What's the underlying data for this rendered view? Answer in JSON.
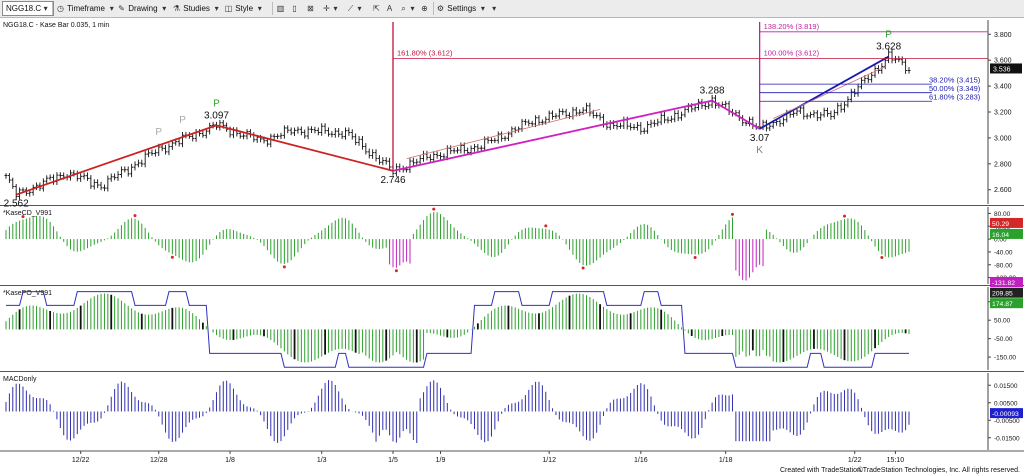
{
  "toolbar": {
    "symbol": "NGG18.C",
    "items": [
      {
        "id": "timeframe",
        "label": "Timeframe",
        "icon": "clock-icon"
      },
      {
        "id": "drawing",
        "label": "Drawing",
        "icon": "pencil-icon"
      },
      {
        "id": "studies",
        "label": "Studies",
        "icon": "flask-icon"
      },
      {
        "id": "style",
        "label": "Style",
        "icon": "style-icon"
      },
      {
        "id": "settings",
        "label": "Settings",
        "icon": "gear-icon"
      }
    ]
  },
  "chart_data": {
    "type": "candlestick",
    "symbol_label": "NGG18.C - Kase Bar 0.035, 1 min",
    "x_labels": [
      "12/22",
      "12/28",
      "1/8",
      "1/3",
      "1/5",
      "1/9",
      "1/12",
      "1/16",
      "1/18",
      "1/22",
      "15:10"
    ],
    "price_axis": {
      "ticks": [
        "3.800",
        "3.600",
        "3.400",
        "3.200",
        "3.000",
        "2.800",
        "2.600"
      ],
      "ylim": [
        2.49,
        3.91
      ],
      "last_price": "3.536"
    },
    "swing_points": [
      {
        "x_index": 3,
        "label": "2.562",
        "price": 2.562
      },
      {
        "x_index": 62,
        "label": "3.097",
        "price": 3.097
      },
      {
        "x_index": 114,
        "label": "2.746",
        "price": 2.746
      },
      {
        "x_index": 208,
        "label": "3.288",
        "price": 3.288
      },
      {
        "x_index": 222,
        "label": "3.07",
        "price": 3.07
      },
      {
        "x_index": 260,
        "label": "3.628",
        "price": 3.628
      }
    ],
    "pattern_markers": [
      {
        "x_index": 62,
        "label": "P",
        "color": "#2ca02c",
        "placement": "above"
      },
      {
        "x_index": 45,
        "label": "P",
        "color": "#a9a9a9",
        "placement": "above"
      },
      {
        "x_index": 52,
        "label": "P",
        "color": "#a9a9a9",
        "placement": "above"
      },
      {
        "x_index": 260,
        "label": "P",
        "color": "#2ca02c",
        "placement": "above"
      },
      {
        "x_index": 222,
        "label": "K",
        "color": "#808080",
        "placement": "below"
      }
    ],
    "projection_lines": [
      {
        "label": "161.80% (3.612)",
        "price": 3.612,
        "color": "#c0143c"
      },
      {
        "label": "138.20% (3.819)",
        "price": 3.819,
        "color": "#c020a0"
      },
      {
        "label": "100.00% (3.612)",
        "price": 3.612,
        "color": "#c020a0"
      }
    ],
    "retracement_lines": [
      {
        "label": "38.20% (3.415)",
        "price": 3.415
      },
      {
        "label": "50.00% (3.349)",
        "price": 3.349
      },
      {
        "label": "61.80% (3.283)",
        "price": 3.283
      }
    ],
    "price_waypoints": [
      [
        0,
        2.7
      ],
      [
        3,
        2.562
      ],
      [
        18,
        2.73
      ],
      [
        28,
        2.63
      ],
      [
        45,
        2.91
      ],
      [
        62,
        3.097
      ],
      [
        75,
        2.98
      ],
      [
        85,
        3.06
      ],
      [
        100,
        3.04
      ],
      [
        114,
        2.746
      ],
      [
        125,
        2.86
      ],
      [
        140,
        2.94
      ],
      [
        155,
        3.13
      ],
      [
        170,
        3.22
      ],
      [
        178,
        3.1
      ],
      [
        188,
        3.08
      ],
      [
        208,
        3.288
      ],
      [
        222,
        3.07
      ],
      [
        233,
        3.2
      ],
      [
        243,
        3.17
      ],
      [
        250,
        3.36
      ],
      [
        260,
        3.628
      ],
      [
        266,
        3.536
      ]
    ],
    "panels": [
      {
        "name": "*KaseCD_V991",
        "type": "histogram",
        "ticks": [
          "80.00",
          "40.00",
          "0.00",
          "-40.00",
          "-80.00",
          "-120.00"
        ],
        "ylim": [
          -140,
          100
        ],
        "badges": [
          {
            "text": "50.29",
            "color": "#d62728"
          },
          {
            "text": "16.04",
            "color": "#2ca02c"
          },
          {
            "text": "-131.82",
            "color": "#c020c0"
          }
        ]
      },
      {
        "name": "*KasePO_V991",
        "type": "histogram",
        "ticks": [
          "150.00",
          "50.00",
          "-50.00",
          "-150.00"
        ],
        "ylim": [
          -220,
          230
        ],
        "badges": [
          {
            "text": "209.85",
            "color": "#222222"
          },
          {
            "text": "174.87",
            "color": "#2ca02c"
          }
        ]
      },
      {
        "name": "MACDonly",
        "type": "histogram",
        "ticks": [
          "0.01500",
          "0.00500",
          "-0.00500",
          "-0.01500"
        ],
        "ylim": [
          -0.022,
          0.022
        ],
        "badges": [
          {
            "text": "-0.00093",
            "color": "#1f1fd0"
          }
        ]
      }
    ]
  },
  "footer": {
    "created_with": "Created with TradeStation.",
    "copyright": "©TradeStation Technologies, Inc. All rights reserved."
  },
  "colors": {
    "up_swing": "#cc2222",
    "corrective": "#d020c0",
    "final_swing": "#1a1ab0",
    "histogram_positive": "#2ca02c",
    "histogram_negative": "#c020c0",
    "macd": "#3030b0"
  }
}
